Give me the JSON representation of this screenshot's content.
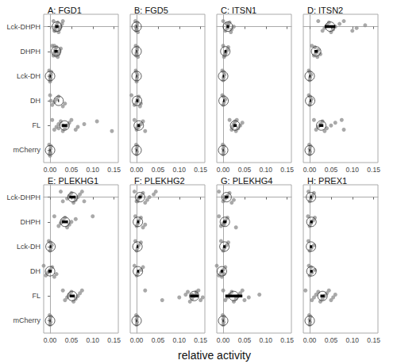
{
  "chart_data": {
    "type": "scatter",
    "xlabel": "relative activity",
    "xlim": [
      -0.015,
      0.16
    ],
    "xticks": [
      {
        "value": 0,
        "label": "0.00"
      },
      {
        "value": 0.05,
        "label": "0.05"
      },
      {
        "value": 0.1,
        "label": "0.10"
      },
      {
        "value": 0.15,
        "label": "0.15"
      }
    ],
    "grid": false,
    "color": "#8c8c8c",
    "marker": "circle",
    "categories": [
      "Lck-DHPH",
      "DHPH",
      "Lck-DH",
      "DH",
      "FL",
      "mCherry"
    ],
    "panels": [
      {
        "title": "A: FGD1",
        "values": [
          [
            0.008,
            0.01,
            0.012,
            0.015,
            0.018,
            0.02,
            0.022,
            0.025,
            0.028,
            0.03,
            0.012
          ],
          [
            0.005,
            0.008,
            0.01,
            0.012,
            0.015,
            0.018,
            0.02,
            0.022,
            0.025,
            0.01,
            0.014
          ],
          [
            -0.002,
            0,
            0.001,
            0.002,
            0.003,
            0,
            0.001,
            -0.001
          ],
          [
            0,
            0.005,
            0.01,
            0.015,
            0.02,
            0.03,
            0.035,
            0.002
          ],
          [
            0.005,
            0.01,
            0.015,
            0.02,
            0.025,
            0.03,
            0.035,
            0.04,
            0.045,
            0.05,
            0.06,
            0.065,
            0.08,
            0.11,
            0.145,
            0.02,
            0.03
          ],
          [
            -0.002,
            -0.001,
            0,
            0.001,
            0.002,
            0,
            0.001
          ]
        ],
        "mean": [
          0.016,
          0.014,
          0,
          0.02,
          0.034,
          0
        ],
        "ci_low": [
          0.012,
          0.01,
          -0.001,
          0.019,
          0.028,
          -0.001
        ],
        "ci_high": [
          0.02,
          0.018,
          0.002,
          0.021,
          0.04,
          0.001
        ]
      },
      {
        "title": "B: FGD5",
        "values": [
          [
            -0.003,
            -0.001,
            0,
            0.001,
            0.002,
            0.003,
            0,
            -0.002
          ],
          [
            -0.002,
            -0.001,
            0,
            0.001,
            0.002,
            0.003,
            0
          ],
          [
            -0.002,
            0,
            0.001,
            0.002,
            -0.001,
            0
          ],
          [
            -0.012,
            -0.005,
            0,
            0.002,
            0.005,
            0.008,
            0.01,
            0.003
          ],
          [
            -0.005,
            0,
            0.005,
            0.01,
            0.015,
            0.02,
            0,
            0.003
          ],
          [
            -0.001,
            0,
            0.001,
            0,
            0.002
          ]
        ],
        "mean": [
          0,
          0,
          0,
          0.001,
          0.005,
          0
        ],
        "ci_low": [
          -0.001,
          -0.001,
          -0.001,
          -0.001,
          0.002,
          -0.001
        ],
        "ci_high": [
          0.001,
          0.001,
          0.001,
          0.004,
          0.008,
          0.001
        ]
      },
      {
        "title": "C: ITSN1",
        "values": [
          [
            0,
            0.005,
            0.01,
            0.012,
            0.015,
            0.018,
            0.02,
            0.025,
            0.008
          ],
          [
            0,
            0.003,
            0.006,
            0.01,
            0.012,
            0.002,
            0.005
          ],
          [
            -0.002,
            0,
            0.001,
            0.003,
            0.001
          ],
          [
            -0.002,
            0,
            0.002,
            0.005,
            0.001
          ],
          [
            0.015,
            0.02,
            0.022,
            0.025,
            0.028,
            0.03,
            0.035,
            0.04,
            0.045,
            0.032
          ],
          [
            -0.001,
            0,
            0.001,
            0,
            0.002
          ]
        ],
        "mean": [
          0.011,
          0.005,
          0,
          0.001,
          0.028,
          0
        ],
        "ci_low": [
          0.008,
          0.003,
          -0.001,
          0,
          0.024,
          -0.001
        ],
        "ci_high": [
          0.014,
          0.008,
          0.002,
          0.003,
          0.032,
          0.001
        ]
      },
      {
        "title": "D: ITSN2",
        "values": [
          [
            0.02,
            0.03,
            0.035,
            0.04,
            0.045,
            0.05,
            0.055,
            0.06,
            0.07,
            0.08,
            0.1,
            0.11,
            0.13
          ],
          [
            0.005,
            0.01,
            0.015,
            0.02,
            0.012,
            0.018,
            0.025
          ],
          [
            -0.002,
            0,
            0.001,
            0.003,
            0
          ],
          [
            -0.002,
            0,
            0.002,
            0.004,
            0.001
          ],
          [
            0.01,
            0.015,
            0.02,
            0.025,
            0.03,
            0.035,
            0.04,
            0.05,
            0.06,
            0.075,
            0.08
          ],
          [
            -0.001,
            0,
            0.001,
            0,
            0.002
          ]
        ],
        "mean": [
          0.048,
          0.015,
          0,
          0.001,
          0.027,
          0
        ],
        "ci_low": [
          0.035,
          0.011,
          -0.001,
          0,
          0.022,
          -0.001
        ],
        "ci_high": [
          0.06,
          0.019,
          0.002,
          0.003,
          0.032,
          0.001
        ]
      },
      {
        "title": "E: PLEKHG1",
        "values": [
          [
            0.025,
            0.03,
            0.04,
            0.045,
            0.05,
            0.055,
            0.06,
            0.065,
            0.07,
            0.075,
            0.08
          ],
          [
            0.01,
            0.02,
            0.025,
            0.03,
            0.035,
            0.04,
            0.045,
            0.05,
            0.06,
            0.1
          ],
          [
            -0.003,
            0,
            0.002,
            0.004,
            0.001
          ],
          [
            -0.015,
            -0.01,
            -0.005,
            0,
            0.005,
            0.01,
            0.015,
            -0.002
          ],
          [
            0.03,
            0.035,
            0.04,
            0.045,
            0.05,
            0.055,
            0.06,
            0.065,
            0.07,
            0.075
          ],
          [
            -0.001,
            0,
            0.001,
            0,
            0.002
          ]
        ],
        "mean": [
          0.053,
          0.035,
          0.001,
          0,
          0.052,
          0
        ],
        "ci_low": [
          0.045,
          0.028,
          -0.001,
          -0.004,
          0.046,
          -0.001
        ],
        "ci_high": [
          0.06,
          0.042,
          0.003,
          0.004,
          0.058,
          0.001
        ]
      },
      {
        "title": "F: PLEKHG2",
        "values": [
          [
            -0.005,
            0,
            0.005,
            0.01,
            0.015,
            0.02,
            0.025,
            0.03,
            0.04,
            0.045,
            0.002
          ],
          [
            -0.003,
            0,
            0.003,
            0.005,
            0.01,
            0.015,
            0.02
          ],
          [
            -0.003,
            0,
            0.002,
            0.005,
            0.01
          ],
          [
            -0.005,
            0,
            0.003,
            0.01,
            0.015
          ],
          [
            0.02,
            0.06,
            0.1,
            0.115,
            0.12,
            0.125,
            0.13,
            0.135,
            0.14,
            0.145,
            0.15,
            0.155,
            0.13,
            0.14
          ],
          [
            -0.001,
            0,
            0.001,
            0,
            0.002
          ]
        ],
        "mean": [
          0.008,
          0.003,
          0.002,
          0.003,
          0.135,
          0
        ],
        "ci_low": [
          0.004,
          0.001,
          0,
          0.001,
          0.125,
          -0.001
        ],
        "ci_high": [
          0.012,
          0.006,
          0.004,
          0.006,
          0.145,
          0.001
        ]
      },
      {
        "title": "G: PLEKHG4",
        "values": [
          [
            -0.01,
            0,
            0.005,
            0.01,
            0.015,
            0.02,
            0.025,
            0.003
          ],
          [
            -0.01,
            -0.005,
            0,
            0.005,
            0.01,
            0.03,
            0.002
          ],
          [
            -0.005,
            0,
            0.003,
            0.008,
            0.012
          ],
          [
            -0.015,
            -0.01,
            -0.005,
            0,
            0.005,
            -0.003,
            0.002
          ],
          [
            0,
            0.005,
            0.01,
            0.015,
            0.02,
            0.025,
            0.03,
            0.035,
            0.04,
            0.045,
            0.05,
            0.06,
            0.085
          ],
          [
            -0.001,
            0,
            0.001,
            0,
            0.002
          ]
        ],
        "mean": [
          0.008,
          0.004,
          0.003,
          -0.003,
          0.025,
          0
        ],
        "ci_low": [
          0.004,
          0,
          0,
          -0.006,
          0.005,
          -0.001
        ],
        "ci_high": [
          0.012,
          0.008,
          0.006,
          0,
          0.045,
          0.001
        ]
      },
      {
        "title": "H: PREX1",
        "values": [
          [
            -0.003,
            0,
            0.003,
            0.006,
            0.01
          ],
          [
            -0.004,
            0,
            0.003,
            0.008,
            0.012
          ],
          [
            -0.003,
            0,
            0.004,
            0.01
          ],
          [
            -0.002,
            0,
            0.005,
            0.012,
            0.003
          ],
          [
            -0.01,
            0.005,
            0.01,
            0.015,
            0.02,
            0.025,
            0.03,
            0.035,
            0.04,
            0.045,
            0.05,
            0.055,
            0.06
          ],
          [
            -0.001,
            0,
            0.001,
            0,
            0.002
          ]
        ],
        "mean": [
          0.003,
          0.004,
          0.003,
          0.004,
          0.03,
          0
        ],
        "ci_low": [
          0.001,
          0.001,
          0,
          0.001,
          0.025,
          -0.001
        ],
        "ci_high": [
          0.005,
          0.007,
          0.006,
          0.007,
          0.035,
          0.001
        ]
      }
    ]
  }
}
